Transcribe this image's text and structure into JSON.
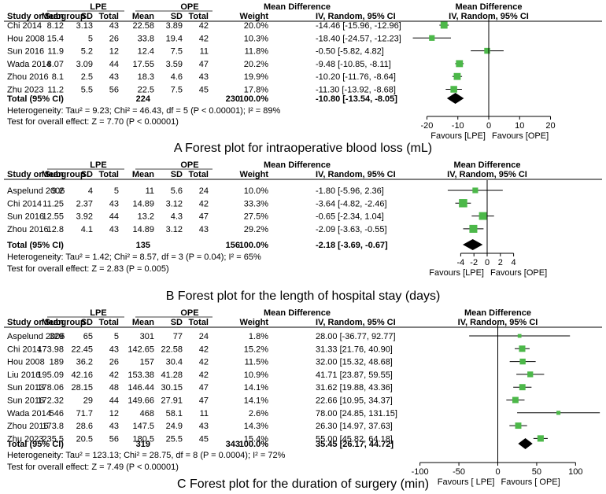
{
  "columns": {
    "group_lpe": "LPE",
    "group_ope": "OPE",
    "mean_diff": "Mean Difference",
    "study": "Study or Subgroup",
    "mean": "Mean",
    "sd": "SD",
    "total": "Total",
    "weight": "Weight",
    "ci": "IV, Random, 95% CI"
  },
  "chart_data": [
    {
      "type": "forest",
      "caption": "A Forest plot for intraoperative blood loss (mL)",
      "studies": [
        {
          "name": "Chi 2014",
          "lpe_mean": "8.12",
          "lpe_sd": "3.13",
          "lpe_total": "43",
          "ope_mean": "22.58",
          "ope_sd": "3.89",
          "ope_total": "42",
          "weight": "20.0%",
          "ci_text": "-14.46 [-15.96, -12.96]",
          "md": -14.46,
          "lo": -15.96,
          "hi": -12.96,
          "w": 20.0
        },
        {
          "name": "Hou 2008",
          "lpe_mean": "15.4",
          "lpe_sd": "5",
          "lpe_total": "26",
          "ope_mean": "33.8",
          "ope_sd": "19.4",
          "ope_total": "42",
          "weight": "10.3%",
          "ci_text": "-18.40 [-24.57, -12.23]",
          "md": -18.4,
          "lo": -24.57,
          "hi": -12.23,
          "w": 10.3
        },
        {
          "name": "Sun 2016",
          "lpe_mean": "11.9",
          "lpe_sd": "5.2",
          "lpe_total": "12",
          "ope_mean": "12.4",
          "ope_sd": "7.5",
          "ope_total": "11",
          "weight": "11.8%",
          "ci_text": "-0.50 [-5.82, 4.82]",
          "md": -0.5,
          "lo": -5.82,
          "hi": 4.82,
          "w": 11.8
        },
        {
          "name": "Wada 2014",
          "lpe_mean": "8.07",
          "lpe_sd": "3.09",
          "lpe_total": "44",
          "ope_mean": "17.55",
          "ope_sd": "3.59",
          "ope_total": "47",
          "weight": "20.2%",
          "ci_text": "-9.48 [-10.85, -8.11]",
          "md": -9.48,
          "lo": -10.85,
          "hi": -8.11,
          "w": 20.2
        },
        {
          "name": "Zhou 2016",
          "lpe_mean": "8.1",
          "lpe_sd": "2.5",
          "lpe_total": "43",
          "ope_mean": "18.3",
          "ope_sd": "4.6",
          "ope_total": "43",
          "weight": "19.9%",
          "ci_text": "-10.20 [-11.76, -8.64]",
          "md": -10.2,
          "lo": -11.76,
          "hi": -8.64,
          "w": 19.9
        },
        {
          "name": "Zhu 2023",
          "lpe_mean": "11.2",
          "lpe_sd": "5.5",
          "lpe_total": "56",
          "ope_mean": "22.5",
          "ope_sd": "7.5",
          "ope_total": "45",
          "weight": "17.8%",
          "ci_text": "-11.30 [-13.92, -8.68]",
          "md": -11.3,
          "lo": -13.92,
          "hi": -8.68,
          "w": 17.8
        }
      ],
      "total": {
        "label": "Total (95% CI)",
        "lpe_total": "224",
        "ope_total": "230",
        "weight": "100.0%",
        "ci_text": "-10.80 [-13.54, -8.05]",
        "md": -10.8,
        "lo": -13.54,
        "hi": -8.05
      },
      "heterogeneity": "Heterogeneity: Tau² = 9.23; Chi² = 46.43, df = 5 (P < 0.00001); I² = 89%",
      "overall_effect": "Test for overall effect: Z = 7.70 (P < 0.00001)",
      "xlim": [
        -27,
        27
      ],
      "ticks": [
        -20,
        -10,
        0,
        10,
        20
      ],
      "tick_labels": [
        "-20",
        "-10",
        "0",
        "10",
        "20"
      ],
      "favours_left": "Favours [LPE]",
      "favours_right": "Favours [OPE]"
    },
    {
      "type": "forest",
      "caption": "B Forest plot for the length of hospital stay (days)",
      "studies": [
        {
          "name": "Aspelund 2006",
          "lpe_mean": "9.2",
          "lpe_sd": "4",
          "lpe_total": "5",
          "ope_mean": "11",
          "ope_sd": "5.6",
          "ope_total": "24",
          "weight": "10.0%",
          "ci_text": "-1.80 [-5.96, 2.36]",
          "md": -1.8,
          "lo": -5.96,
          "hi": 2.36,
          "w": 10.0
        },
        {
          "name": "Chi 2014",
          "lpe_mean": "11.25",
          "lpe_sd": "2.37",
          "lpe_total": "43",
          "ope_mean": "14.89",
          "ope_sd": "3.12",
          "ope_total": "42",
          "weight": "33.3%",
          "ci_text": "-3.64 [-4.82, -2.46]",
          "md": -3.64,
          "lo": -4.82,
          "hi": -2.46,
          "w": 33.3
        },
        {
          "name": "Sun 2016",
          "lpe_mean": "12.55",
          "lpe_sd": "3.92",
          "lpe_total": "44",
          "ope_mean": "13.2",
          "ope_sd": "4.3",
          "ope_total": "47",
          "weight": "27.5%",
          "ci_text": "-0.65 [-2.34, 1.04]",
          "md": -0.65,
          "lo": -2.34,
          "hi": 1.04,
          "w": 27.5
        },
        {
          "name": "Zhou 2016",
          "lpe_mean": "12.8",
          "lpe_sd": "4.1",
          "lpe_total": "43",
          "ope_mean": "14.89",
          "ope_sd": "3.12",
          "ope_total": "43",
          "weight": "29.2%",
          "ci_text": "-2.09 [-3.63, -0.55]",
          "md": -2.09,
          "lo": -3.63,
          "hi": -0.55,
          "w": 29.2
        }
      ],
      "total": {
        "label": "Total (95% CI)",
        "lpe_total": "135",
        "ope_total": "156",
        "weight": "100.0%",
        "ci_text": "-2.18 [-3.69, -0.67]",
        "md": -2.18,
        "lo": -3.69,
        "hi": -0.67
      },
      "heterogeneity": "Heterogeneity: Tau² = 1.42; Chi² = 8.57, df = 3 (P = 0.04); I² = 65%",
      "overall_effect": "Test for overall effect: Z = 2.83 (P = 0.005)",
      "xlim": [
        -10,
        10
      ],
      "ticks": [
        -4,
        -2,
        0,
        2,
        4
      ],
      "tick_labels": [
        "-4",
        "-2",
        "0",
        "2",
        "4"
      ],
      "favours_left": "Favours [LPE]",
      "favours_right": "Favours [OPE]"
    },
    {
      "type": "forest",
      "caption": "C Forest plot for the duration of surgery (min)",
      "studies": [
        {
          "name": "Aspelund 2006",
          "lpe_mean": "329",
          "lpe_sd": "65",
          "lpe_total": "5",
          "ope_mean": "301",
          "ope_sd": "77",
          "ope_total": "24",
          "weight": "1.8%",
          "ci_text": "28.00 [-36.77, 92.77]",
          "md": 28.0,
          "lo": -36.77,
          "hi": 92.77,
          "w": 1.8
        },
        {
          "name": "Chi 2014",
          "lpe_mean": "173.98",
          "lpe_sd": "22.45",
          "lpe_total": "43",
          "ope_mean": "142.65",
          "ope_sd": "22.58",
          "ope_total": "42",
          "weight": "15.2%",
          "ci_text": "31.33 [21.76, 40.90]",
          "md": 31.33,
          "lo": 21.76,
          "hi": 40.9,
          "w": 15.2
        },
        {
          "name": "Hou 2008",
          "lpe_mean": "189",
          "lpe_sd": "36.2",
          "lpe_total": "26",
          "ope_mean": "157",
          "ope_sd": "30.4",
          "ope_total": "42",
          "weight": "11.5%",
          "ci_text": "32.00 [15.32, 48.68]",
          "md": 32.0,
          "lo": 15.32,
          "hi": 48.68,
          "w": 11.5
        },
        {
          "name": "Liu 2016",
          "lpe_mean": "195.09",
          "lpe_sd": "42.16",
          "lpe_total": "42",
          "ope_mean": "153.38",
          "ope_sd": "41.28",
          "ope_total": "42",
          "weight": "10.9%",
          "ci_text": "41.71 [23.87, 59.55]",
          "md": 41.71,
          "lo": 23.87,
          "hi": 59.55,
          "w": 10.9
        },
        {
          "name": "Sun 2013",
          "lpe_mean": "178.06",
          "lpe_sd": "28.15",
          "lpe_total": "48",
          "ope_mean": "146.44",
          "ope_sd": "30.15",
          "ope_total": "47",
          "weight": "14.1%",
          "ci_text": "31.62 [19.88, 43.36]",
          "md": 31.62,
          "lo": 19.88,
          "hi": 43.36,
          "w": 14.1
        },
        {
          "name": "Sun 2016",
          "lpe_mean": "172.32",
          "lpe_sd": "29",
          "lpe_total": "44",
          "ope_mean": "149.66",
          "ope_sd": "27.91",
          "ope_total": "47",
          "weight": "14.1%",
          "ci_text": "22.66 [10.95, 34.37]",
          "md": 22.66,
          "lo": 10.95,
          "hi": 34.37,
          "w": 14.1
        },
        {
          "name": "Wada 2014",
          "lpe_mean": "546",
          "lpe_sd": "71.7",
          "lpe_total": "12",
          "ope_mean": "468",
          "ope_sd": "58.1",
          "ope_total": "11",
          "weight": "2.6%",
          "ci_text": "78.00 [24.85, 131.15]",
          "md": 78.0,
          "lo": 24.85,
          "hi": 131.15,
          "w": 2.6
        },
        {
          "name": "Zhou 2016",
          "lpe_mean": "173.8",
          "lpe_sd": "28.6",
          "lpe_total": "43",
          "ope_mean": "147.5",
          "ope_sd": "24.9",
          "ope_total": "43",
          "weight": "14.3%",
          "ci_text": "26.30 [14.97, 37.63]",
          "md": 26.3,
          "lo": 14.97,
          "hi": 37.63,
          "w": 14.3
        },
        {
          "name": "Zhu 2023",
          "lpe_mean": "235.5",
          "lpe_sd": "20.5",
          "lpe_total": "56",
          "ope_mean": "180.5",
          "ope_sd": "25.5",
          "ope_total": "45",
          "weight": "15.4%",
          "ci_text": "55.00 [45.82, 64.18]",
          "md": 55.0,
          "lo": 45.82,
          "hi": 64.18,
          "w": 15.4
        }
      ],
      "total": {
        "label": "Total (95% CI)",
        "lpe_total": "319",
        "ope_total": "343",
        "weight": "100.0%",
        "ci_text": "35.45 [26.17, 44.72]",
        "md": 35.45,
        "lo": 26.17,
        "hi": 44.72
      },
      "heterogeneity": "Heterogeneity: Tau² = 123.13; Chi² = 28.75, df = 8 (P = 0.0004); I² = 72%",
      "overall_effect": "Test for overall effect: Z = 7.49 (P < 0.00001)",
      "xlim": [
        -132,
        132
      ],
      "ticks": [
        -100,
        -50,
        0,
        50,
        100
      ],
      "tick_labels": [
        "-100",
        "-50",
        "0",
        "50",
        "100"
      ],
      "favours_left": "Favours [ LPE]",
      "favours_right": "Favours [ OPE]"
    }
  ],
  "colors": {
    "square": "#4cb849",
    "line": "#000000",
    "diamond": "#000000"
  }
}
